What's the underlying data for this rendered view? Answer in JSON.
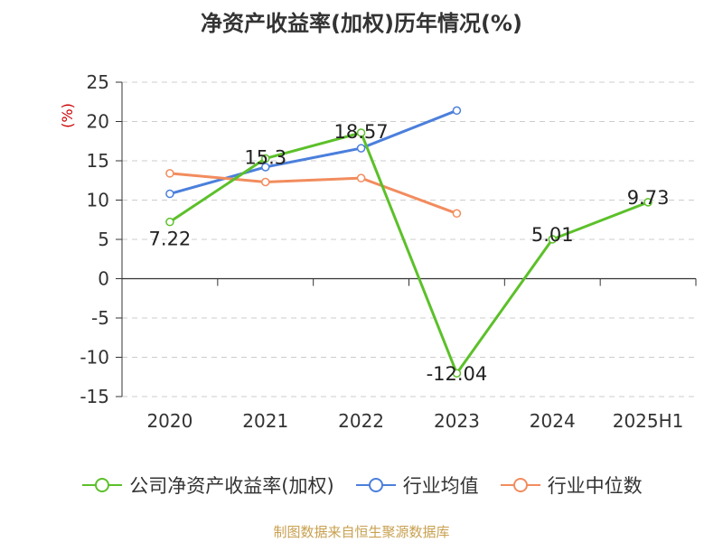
{
  "chart_data": {
    "type": "line",
    "title": "净资产收益率(加权)历年情况(%)",
    "ylabel": "(%)",
    "categories": [
      "2020",
      "2021",
      "2022",
      "2023",
      "2024",
      "2025H1"
    ],
    "ylim": [
      -15,
      25
    ],
    "yticks": [
      25,
      20,
      15,
      10,
      5,
      0,
      -5,
      -10,
      -15
    ],
    "grid": true,
    "legend_position": "bottom",
    "series": [
      {
        "name": "公司净资产收益率(加权)",
        "color": "#5cc02a",
        "values": [
          7.22,
          15.3,
          18.57,
          -12.04,
          5.01,
          9.73
        ],
        "labels": [
          "7.22",
          "15.3",
          "18.57",
          "-12.04",
          "5.01",
          "9.73"
        ]
      },
      {
        "name": "行业均值",
        "color": "#4b7fdc",
        "values": [
          10.8,
          14.2,
          16.6,
          21.4,
          null,
          null
        ]
      },
      {
        "name": "行业中位数",
        "color": "#f28c5e",
        "values": [
          13.4,
          12.3,
          12.8,
          8.3,
          null,
          null
        ]
      }
    ]
  },
  "source": {
    "text": "制图数据来自恒生聚源数据库",
    "color": "#c8a050"
  },
  "colors": {
    "axis": "#333333",
    "grid": "#cccccc",
    "ylabel": "#cc0000"
  }
}
